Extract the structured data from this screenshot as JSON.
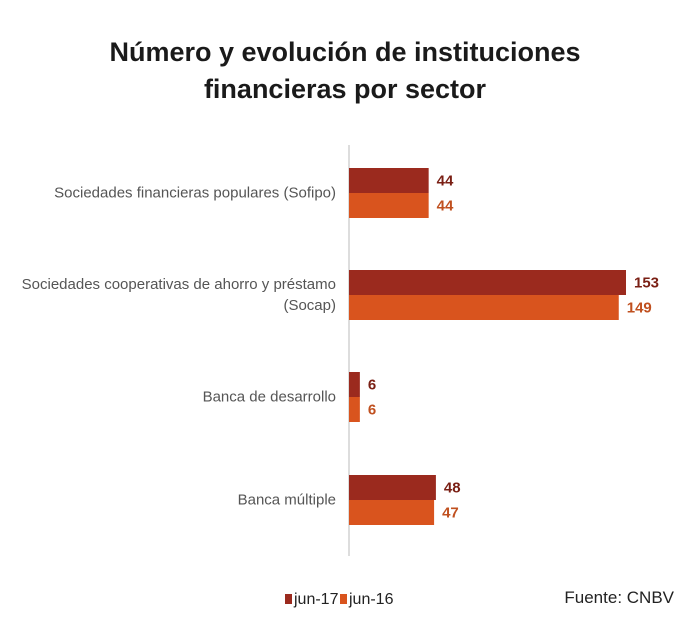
{
  "chart_data": {
    "type": "bar",
    "orientation": "horizontal",
    "title": "Número y evolución de instituciones financieras por sector",
    "categories": [
      "Sociedades financieras populares (Sofipo)",
      "Sociedades cooperativas de ahorro y préstamo (Socap)",
      "Banca de desarrollo",
      "Banca múltiple"
    ],
    "series": [
      {
        "name": "jun-17",
        "color": "#9b2a1e",
        "label_color": "#7a1f14",
        "values": [
          44,
          153,
          6,
          48
        ]
      },
      {
        "name": "jun-16",
        "color": "#d9541e",
        "label_color": "#c0501f",
        "values": [
          44,
          149,
          6,
          47
        ]
      }
    ],
    "source": "Fuente: CNBV"
  }
}
